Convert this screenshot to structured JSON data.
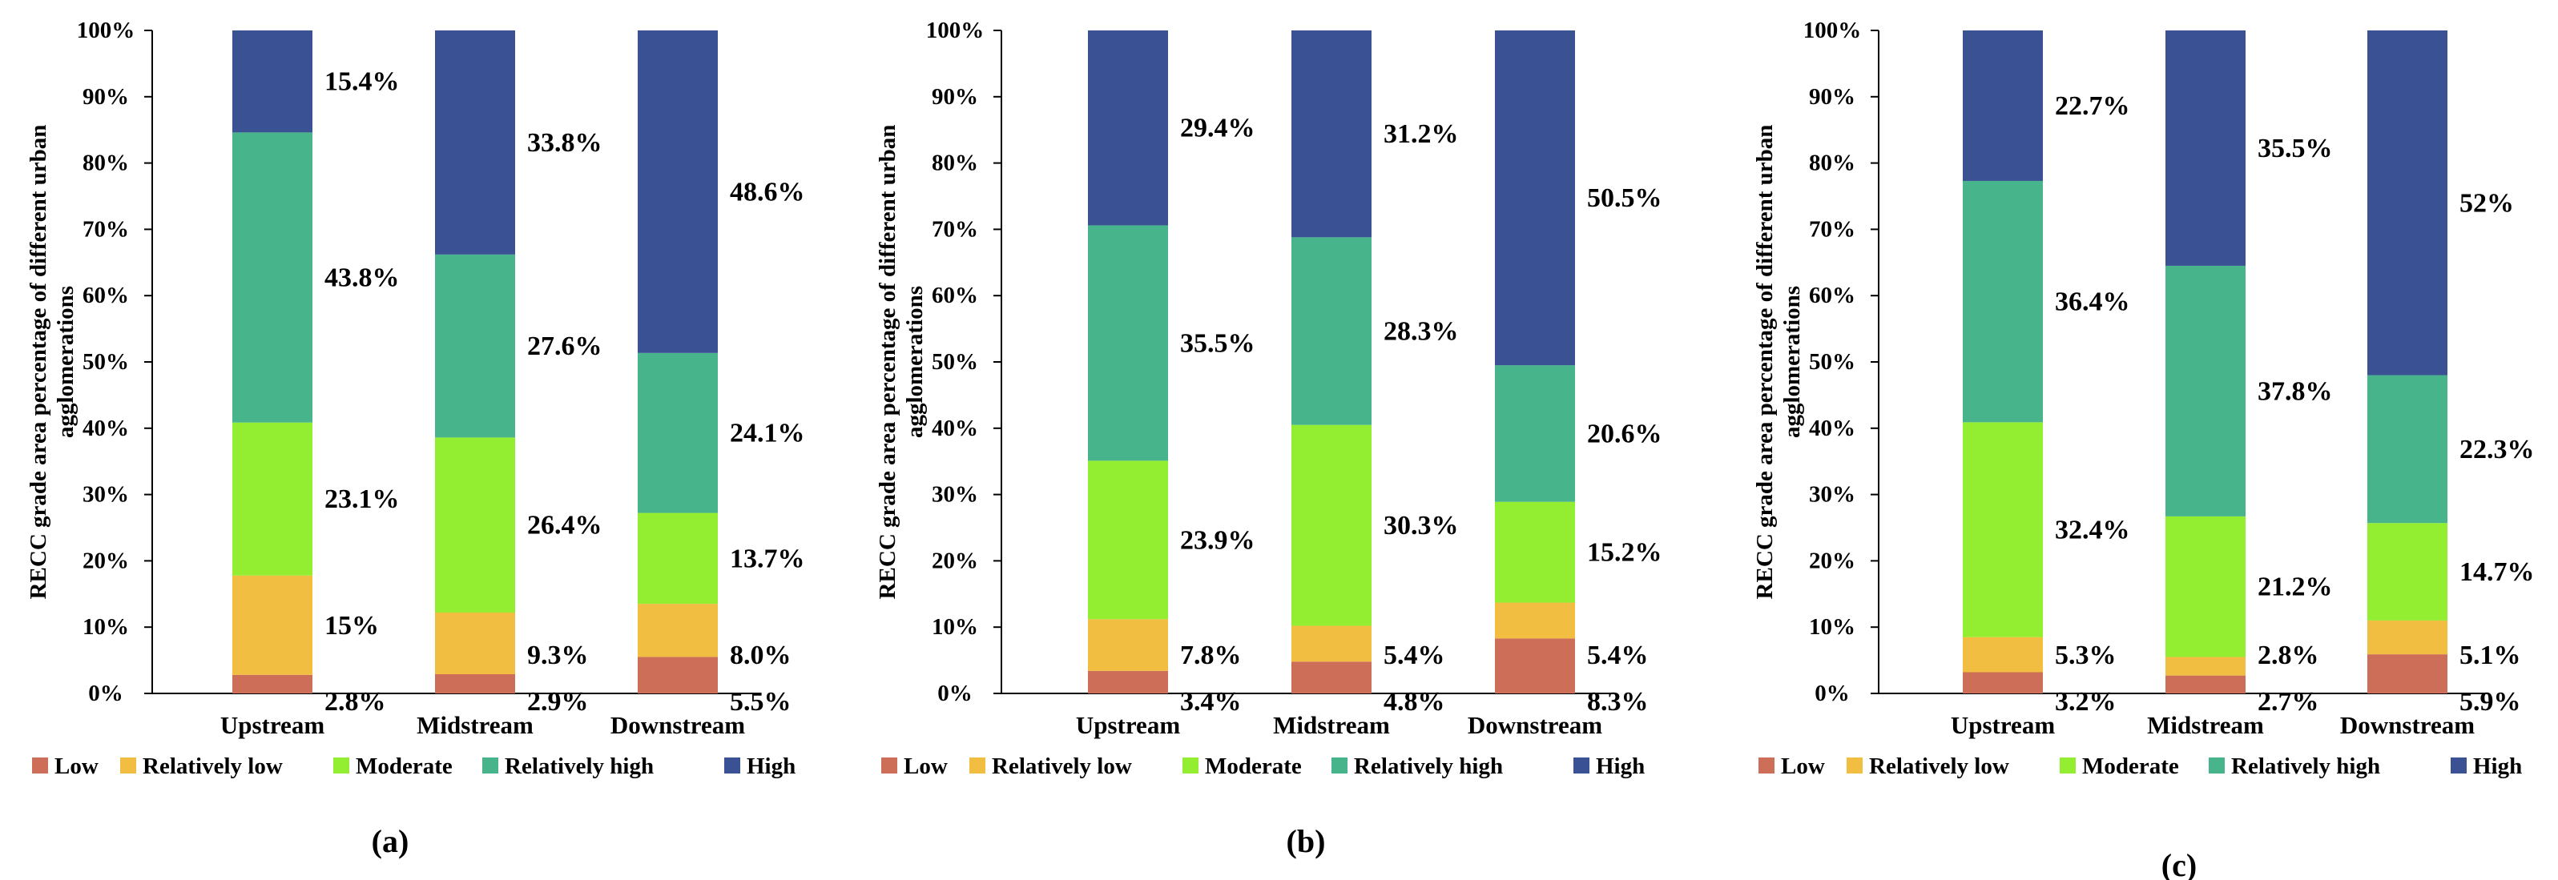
{
  "legend_labels": [
    "Low",
    "Relatively low",
    "Moderate",
    "Relatively high",
    "High"
  ],
  "colors": {
    "Low": "#CC6E58",
    "Relatively low": "#F2BE41",
    "Moderate": "#93EE31",
    "Relatively high": "#47B48C",
    "High": "#3A5294"
  },
  "y_tick_labels": [
    "0%",
    "10%",
    "20%",
    "30%",
    "40%",
    "50%",
    "60%",
    "70%",
    "80%",
    "90%",
    "100%"
  ],
  "chart_data": [
    {
      "type": "bar",
      "stacked": true,
      "panel_label": "(a)",
      "ylabel": "RECC grade area percentage of different urban agglomerations",
      "categories": [
        "Upstream",
        "Midstream",
        "Downstream"
      ],
      "ylim": [
        0,
        100
      ],
      "legend_position": "bottom",
      "series": [
        {
          "name": "Low",
          "values": [
            2.8,
            2.9,
            5.5
          ],
          "labels": [
            "2.8%",
            "2.9%",
            "5.5%"
          ]
        },
        {
          "name": "Relatively low",
          "values": [
            15,
            9.3,
            8.0
          ],
          "labels": [
            "15%",
            "9.3%",
            "8.0%"
          ]
        },
        {
          "name": "Moderate",
          "values": [
            23.1,
            26.4,
            13.7
          ],
          "labels": [
            "23.1%",
            "26.4%",
            "13.7%"
          ]
        },
        {
          "name": "Relatively high",
          "values": [
            43.8,
            27.6,
            24.1
          ],
          "labels": [
            "43.8%",
            "27.6%",
            "24.1%"
          ]
        },
        {
          "name": "High",
          "values": [
            15.4,
            33.8,
            48.6
          ],
          "labels": [
            "15.4%",
            "33.8%",
            "48.6%"
          ]
        }
      ]
    },
    {
      "type": "bar",
      "stacked": true,
      "panel_label": "(b)",
      "ylabel": "RECC grade area percentage of different urban agglomerations",
      "categories": [
        "Upstream",
        "Midstream",
        "Downstream"
      ],
      "ylim": [
        0,
        100
      ],
      "legend_position": "bottom",
      "series": [
        {
          "name": "Low",
          "values": [
            3.4,
            4.8,
            8.3
          ],
          "labels": [
            "3.4%",
            "4.8%",
            "8.3%"
          ]
        },
        {
          "name": "Relatively low",
          "values": [
            7.8,
            5.4,
            5.4
          ],
          "labels": [
            "7.8%",
            "5.4%",
            "5.4%"
          ]
        },
        {
          "name": "Moderate",
          "values": [
            23.9,
            30.3,
            15.2
          ],
          "labels": [
            "23.9%",
            "30.3%",
            "15.2%"
          ]
        },
        {
          "name": "Relatively high",
          "values": [
            35.5,
            28.3,
            20.6
          ],
          "labels": [
            "35.5%",
            "28.3%",
            "20.6%"
          ]
        },
        {
          "name": "High",
          "values": [
            29.4,
            31.2,
            50.5
          ],
          "labels": [
            "29.4%",
            "31.2%",
            "50.5%"
          ]
        }
      ]
    },
    {
      "type": "bar",
      "stacked": true,
      "panel_label": "(c)",
      "ylabel": "RECC grade area percentage of different urban agglomerations",
      "categories": [
        "Upstream",
        "Midstream",
        "Downstream"
      ],
      "ylim": [
        0,
        100
      ],
      "legend_position": "bottom",
      "series": [
        {
          "name": "Low",
          "values": [
            3.2,
            2.7,
            5.9
          ],
          "labels": [
            "3.2%",
            "2.7%",
            "5.9%"
          ]
        },
        {
          "name": "Relatively low",
          "values": [
            5.3,
            2.8,
            5.1
          ],
          "labels": [
            "5.3%",
            "2.8%",
            "5.1%"
          ]
        },
        {
          "name": "Moderate",
          "values": [
            32.4,
            21.2,
            14.7
          ],
          "labels": [
            "32.4%",
            "21.2%",
            "14.7%"
          ]
        },
        {
          "name": "Relatively high",
          "values": [
            36.4,
            37.8,
            22.3
          ],
          "labels": [
            "36.4%",
            "37.8%",
            "22.3%"
          ]
        },
        {
          "name": "High",
          "values": [
            22.7,
            35.5,
            52
          ],
          "labels": [
            "22.7%",
            "35.5%",
            "52%"
          ]
        }
      ]
    }
  ]
}
